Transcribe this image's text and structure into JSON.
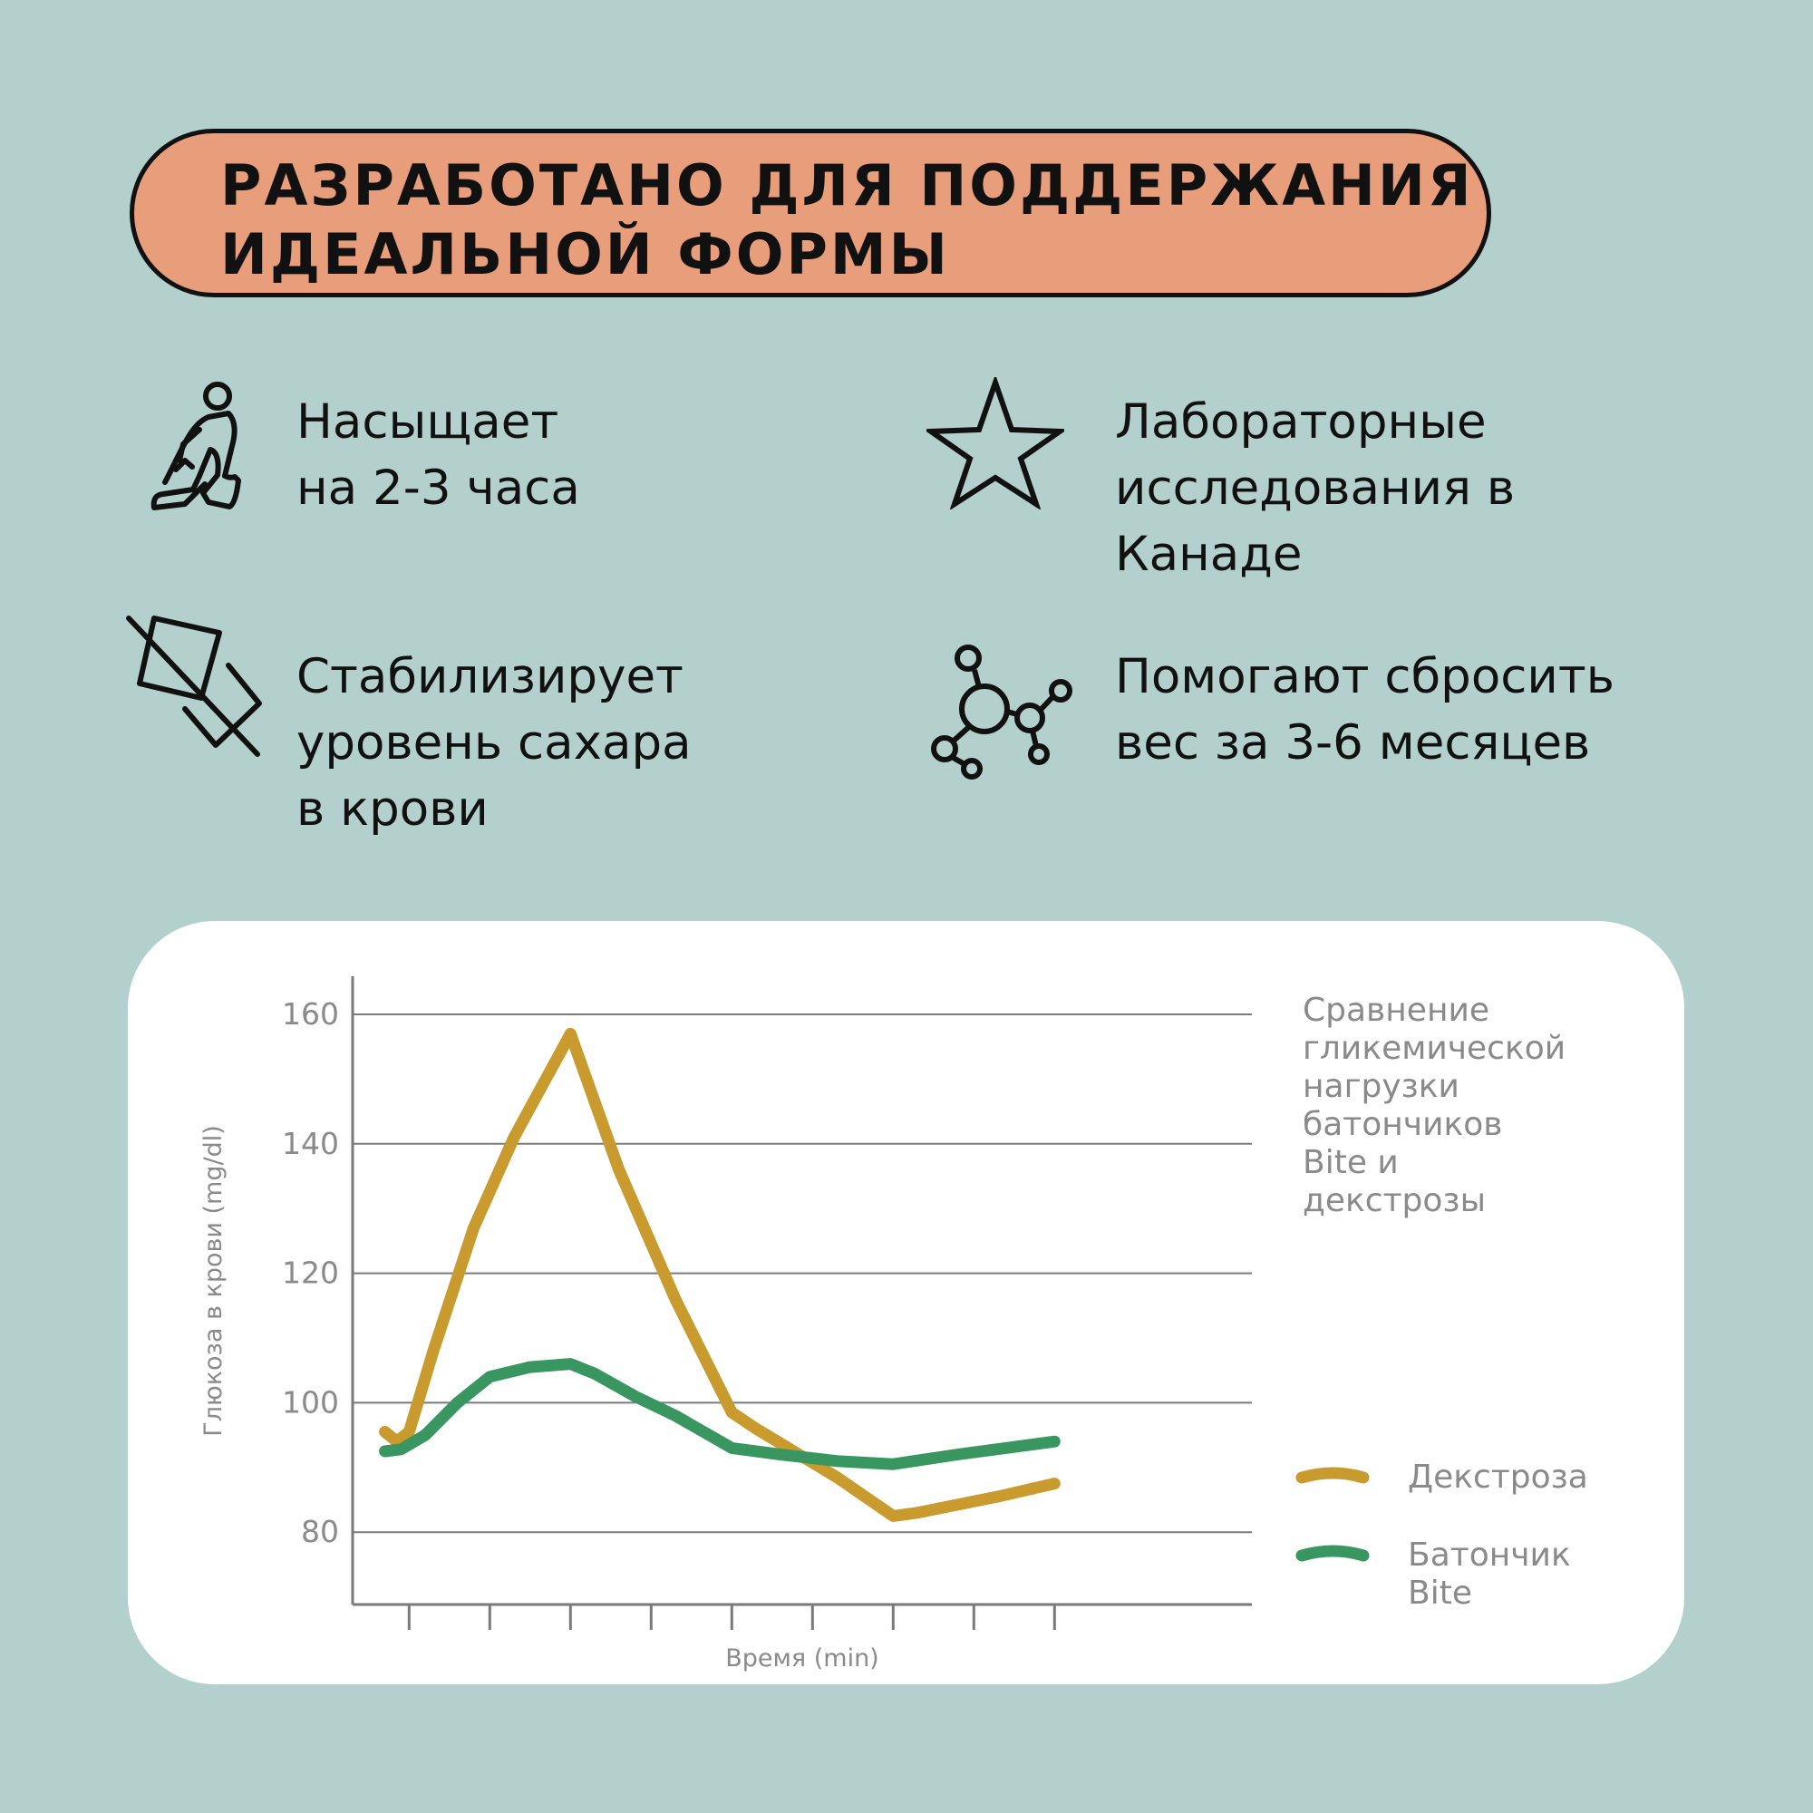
{
  "banner": {
    "lines": [
      "РАЗРАБОТАНО ДЛЯ ПОДДЕРЖАНИЯ",
      "ИДЕАЛЬНОЙ ФОРМЫ"
    ],
    "background": "#e89e7a"
  },
  "features": [
    {
      "icon": "person-squat-icon",
      "lines": [
        "Насыщает",
        "на 2-3 часа"
      ]
    },
    {
      "icon": "star-icon",
      "lines": [
        "Лабораторные",
        "исследования в",
        "Канаде"
      ]
    },
    {
      "icon": "no-sugar-cube-icon",
      "lines": [
        "Стабилизирует",
        "уровень сахара",
        "в крови"
      ]
    },
    {
      "icon": "molecule-icon",
      "lines": [
        "Помогают сбросить",
        "вес за 3-6 месяцев"
      ]
    }
  ],
  "chart_data": {
    "type": "line",
    "title": [
      "Сравнение",
      "гликемической",
      "нагрузки",
      "батончиков",
      "Bite и",
      "декстрозы"
    ],
    "xlabel": "Время (min)",
    "ylabel": "Глюкоза в крови (mg/dl)",
    "yticks": [
      80,
      100,
      120,
      140,
      160
    ],
    "ylim": [
      68,
      165
    ],
    "xlim": [
      0,
      9
    ],
    "x_tick_positions": [
      0.7,
      1.7,
      2.7,
      3.7,
      4.7,
      5.7,
      6.7,
      7.7,
      8.7
    ],
    "grid": true,
    "series": [
      {
        "name": "Декстроза",
        "color": "#c99a2e",
        "x": [
          0.4,
          0.55,
          0.7,
          1.0,
          1.5,
          2.0,
          2.7,
          3.3,
          4.0,
          4.7,
          5.0,
          6.0,
          6.7,
          7.0,
          8.0,
          8.7
        ],
        "y": [
          95.5,
          94,
          95.5,
          108,
          127,
          141,
          157,
          136,
          116,
          98.5,
          96,
          88.5,
          82.5,
          83,
          85.5,
          87.5
        ]
      },
      {
        "name": "Батончик Bite",
        "color": "#3a9660",
        "x": [
          0.4,
          0.6,
          0.9,
          1.3,
          1.7,
          2.2,
          2.7,
          3.0,
          3.5,
          4.0,
          4.7,
          5.3,
          6.0,
          6.7,
          7.5,
          8.7
        ],
        "y": [
          92.5,
          92.8,
          95,
          100,
          104,
          105.5,
          106,
          104.5,
          101,
          98,
          93,
          92,
          91,
          90.5,
          92,
          94
        ]
      }
    ],
    "legend": [
      {
        "lines": [
          "Декстроза"
        ],
        "color": "#c99a2e"
      },
      {
        "lines": [
          "Батончик",
          "Bite"
        ],
        "color": "#3a9660"
      }
    ]
  }
}
